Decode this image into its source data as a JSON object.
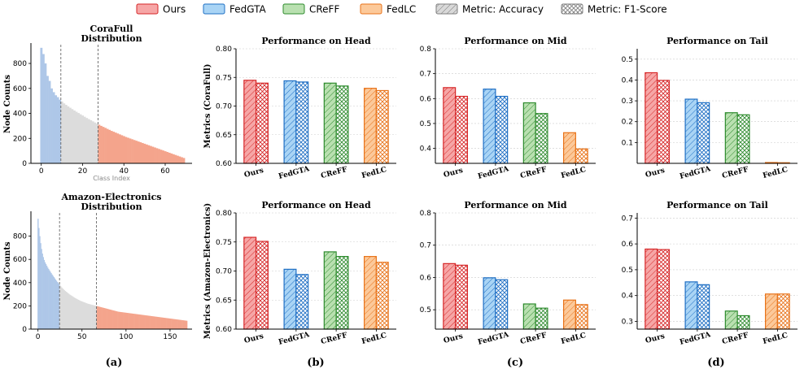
{
  "legend": [
    {
      "label": "Ours",
      "kind": "method",
      "method": "ours"
    },
    {
      "label": "FedGTA",
      "kind": "method",
      "method": "fedgta"
    },
    {
      "label": "CReFF",
      "kind": "method",
      "method": "creff"
    },
    {
      "label": "FedLC",
      "kind": "method",
      "method": "fedlc"
    },
    {
      "label": "Metric: Accuracy",
      "kind": "metric",
      "hatch": "diag"
    },
    {
      "label": "Metric: F1-Score",
      "kind": "metric",
      "hatch": "cross"
    }
  ],
  "colors": {
    "ours": {
      "fill": "#f6a6a6",
      "edge": "#d62728"
    },
    "fedgta": {
      "fill": "#a9d4f5",
      "edge": "#1f6fc4"
    },
    "creff": {
      "fill": "#b9e0b0",
      "edge": "#2e8b2e"
    },
    "fedlc": {
      "fill": "#fcc99a",
      "edge": "#e8731a"
    },
    "metric": {
      "fill": "#d9d9d9",
      "edge": "#7f7f7f"
    },
    "head": "#aec7e8",
    "mid": "#dcdcdc",
    "tail": "#f4a48c"
  },
  "panel_labels": [
    "(a)",
    "(b)",
    "(c)",
    "(d)"
  ],
  "chart_data": [
    {
      "id": "dist-cora",
      "type": "bar",
      "title": "CoraFull\nDistribution",
      "ylabel": "Node Counts",
      "xlabel": "Class Index",
      "xlim": [
        -5,
        73
      ],
      "ylim": [
        0,
        950
      ],
      "xticks": [
        0,
        20,
        40,
        60
      ],
      "yticks": [
        0,
        200,
        400,
        600,
        800
      ],
      "head_end": 10,
      "tail_start": 28,
      "values": [
        925,
        875,
        800,
        700,
        660,
        600,
        570,
        545,
        530,
        510,
        495,
        480,
        468,
        456,
        445,
        434,
        423,
        413,
        403,
        393,
        383,
        373,
        363,
        354,
        345,
        336,
        327,
        318,
        309,
        300,
        292,
        284,
        276,
        268,
        260,
        253,
        246,
        239,
        232,
        225,
        218,
        211,
        205,
        199,
        193,
        187,
        181,
        175,
        169,
        163,
        157,
        151,
        145,
        139,
        133,
        127,
        121,
        115,
        109,
        103,
        97,
        91,
        85,
        79,
        73,
        67,
        61,
        55,
        49,
        43
      ]
    },
    {
      "id": "dist-amazon",
      "type": "bar",
      "title": "Amazon-Electronics\nDistribution",
      "ylabel": "Node Counts",
      "xlabel": "",
      "xlim": [
        -8,
        175
      ],
      "ylim": [
        0,
        1000
      ],
      "xticks": [
        0,
        50,
        100,
        150
      ],
      "yticks": [
        0,
        200,
        400,
        600,
        800
      ],
      "head_end": 25,
      "tail_start": 67,
      "values": [
        950,
        870,
        800,
        740,
        690,
        650,
        620,
        595,
        575,
        560,
        545,
        530,
        518,
        506,
        494,
        482,
        470,
        459,
        448,
        437,
        426,
        416,
        406,
        396,
        386,
        376,
        367,
        358,
        350,
        342,
        335,
        328,
        322,
        316,
        310,
        304,
        298,
        293,
        288,
        283,
        278,
        273,
        268,
        264,
        260,
        256,
        252,
        248,
        244,
        241,
        238,
        235,
        232,
        229,
        226,
        223,
        220,
        218,
        216,
        214,
        212,
        210,
        208,
        206,
        204,
        202,
        200,
        198,
        196,
        194,
        192,
        190,
        188,
        186,
        184,
        182,
        180,
        178,
        176,
        174,
        172,
        170,
        168,
        166,
        164,
        162,
        160,
        158,
        156,
        154,
        152,
        150,
        149,
        148,
        147,
        146,
        145,
        144,
        143,
        142,
        141,
        140,
        139,
        138,
        137,
        136,
        135,
        134,
        133,
        132,
        131,
        130,
        129,
        128,
        127,
        126,
        125,
        124,
        123,
        122,
        121,
        120,
        119,
        118,
        117,
        116,
        115,
        114,
        113,
        112,
        111,
        110,
        109,
        108,
        107,
        106,
        105,
        104,
        103,
        102,
        101,
        100,
        99,
        98,
        97,
        96,
        95,
        94,
        93,
        92,
        91,
        90,
        89,
        88,
        87,
        86,
        85,
        84,
        83,
        82,
        81,
        80,
        79,
        78,
        77,
        76,
        75,
        74,
        73,
        72
      ]
    },
    {
      "id": "cora-head",
      "type": "bar",
      "title": "Performance on Head",
      "ylabel": "Metrics (CoraFull)",
      "categories": [
        "Ours",
        "FedGTA",
        "CReFF",
        "FedLC"
      ],
      "ylim": [
        0.6,
        0.8
      ],
      "yticks": [
        "0.60",
        "0.65",
        "0.70",
        "0.75",
        "0.80"
      ],
      "series": [
        {
          "name": "Metric: Accuracy",
          "values": [
            0.745,
            0.744,
            0.74,
            0.731
          ]
        },
        {
          "name": "Metric: F1-Score",
          "values": [
            0.74,
            0.742,
            0.735,
            0.727
          ]
        }
      ]
    },
    {
      "id": "cora-mid",
      "type": "bar",
      "title": "Performance on Mid",
      "ylabel": "",
      "categories": [
        "Ours",
        "FedGTA",
        "CReFF",
        "FedLC"
      ],
      "ylim": [
        0.34,
        0.8
      ],
      "yticks": [
        "0.4",
        "0.5",
        "0.6",
        "0.7",
        "0.8"
      ],
      "series": [
        {
          "name": "Metric: Accuracy",
          "values": [
            0.644,
            0.638,
            0.583,
            0.463
          ]
        },
        {
          "name": "Metric: F1-Score",
          "values": [
            0.609,
            0.609,
            0.54,
            0.398
          ]
        }
      ]
    },
    {
      "id": "cora-tail",
      "type": "bar",
      "title": "Performance on Tail",
      "ylabel": "",
      "categories": [
        "Ours",
        "FedGTA",
        "CReFF",
        "FedLC"
      ],
      "ylim": [
        0.0,
        0.55
      ],
      "yticks": [
        "0.1",
        "0.2",
        "0.3",
        "0.4",
        "0.5"
      ],
      "series": [
        {
          "name": "Metric: Accuracy",
          "values": [
            0.435,
            0.308,
            0.243,
            0.004
          ]
        },
        {
          "name": "Metric: F1-Score",
          "values": [
            0.398,
            0.291,
            0.233,
            0.003
          ]
        }
      ]
    },
    {
      "id": "amazon-head",
      "type": "bar",
      "title": "Performance on Head",
      "ylabel": "Metrics (Amazon-Electronics)",
      "categories": [
        "Ours",
        "FedGTA",
        "CReFF",
        "FedLC"
      ],
      "ylim": [
        0.6,
        0.8
      ],
      "yticks": [
        "0.60",
        "0.65",
        "0.70",
        "0.75",
        "0.80"
      ],
      "series": [
        {
          "name": "Metric: Accuracy",
          "values": [
            0.758,
            0.703,
            0.733,
            0.725
          ]
        },
        {
          "name": "Metric: F1-Score",
          "values": [
            0.751,
            0.694,
            0.725,
            0.715
          ]
        }
      ]
    },
    {
      "id": "amazon-mid",
      "type": "bar",
      "title": "Performance on Mid",
      "ylabel": "",
      "categories": [
        "Ours",
        "FedGTA",
        "CReFF",
        "FedLC"
      ],
      "ylim": [
        0.44,
        0.8
      ],
      "yticks": [
        "0.5",
        "0.6",
        "0.7",
        "0.8"
      ],
      "series": [
        {
          "name": "Metric: Accuracy",
          "values": [
            0.643,
            0.599,
            0.518,
            0.53
          ]
        },
        {
          "name": "Metric: F1-Score",
          "values": [
            0.638,
            0.593,
            0.505,
            0.516
          ]
        }
      ]
    },
    {
      "id": "amazon-tail",
      "type": "bar",
      "title": "Performance on Tail",
      "ylabel": "",
      "categories": [
        "Ours",
        "FedGTA",
        "CReFF",
        "FedLC"
      ],
      "ylim": [
        0.27,
        0.72
      ],
      "yticks": [
        "0.3",
        "0.4",
        "0.5",
        "0.6",
        "0.7"
      ],
      "series": [
        {
          "name": "Metric: Accuracy",
          "values": [
            0.58,
            0.453,
            0.34,
            0.406
          ]
        },
        {
          "name": "Metric: F1-Score",
          "values": [
            0.578,
            0.442,
            0.322,
            0.406
          ]
        }
      ]
    }
  ]
}
